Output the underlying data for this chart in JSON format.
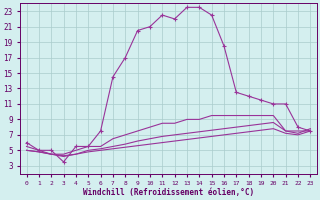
{
  "background_color": "#d4efef",
  "grid_color": "#aacccc",
  "line_color": "#993399",
  "xlabel": "Windchill (Refroidissement éolien,°C)",
  "xlabel_color": "#660066",
  "tick_color": "#660066",
  "xlim": [
    -0.5,
    23.5
  ],
  "ylim": [
    2,
    24
  ],
  "yticks": [
    3,
    5,
    7,
    9,
    11,
    13,
    15,
    17,
    19,
    21,
    23
  ],
  "xticks": [
    0,
    1,
    2,
    3,
    4,
    5,
    6,
    7,
    8,
    9,
    10,
    11,
    12,
    13,
    14,
    15,
    16,
    17,
    18,
    19,
    20,
    21,
    22,
    23
  ],
  "curve1_x": [
    0,
    1,
    2,
    3,
    4,
    5,
    6,
    7,
    8,
    9,
    10,
    11,
    12,
    13,
    14,
    15,
    16,
    17,
    18,
    19,
    20,
    21,
    22,
    23
  ],
  "curve1_y": [
    6.0,
    5.0,
    5.0,
    3.5,
    5.5,
    5.5,
    7.5,
    14.5,
    17.0,
    20.5,
    21.0,
    22.5,
    22.0,
    23.5,
    23.5,
    22.5,
    18.5,
    12.5,
    12.0,
    11.5,
    11.0,
    11.0,
    8.0,
    7.5
  ],
  "curve2_x": [
    0,
    1,
    2,
    3,
    4,
    5,
    6,
    7,
    8,
    9,
    10,
    11,
    12,
    13,
    14,
    15,
    16,
    17,
    18,
    19,
    20,
    21,
    22,
    23
  ],
  "curve2_y": [
    5.5,
    5.0,
    4.5,
    4.5,
    5.0,
    5.5,
    5.5,
    6.5,
    7.0,
    7.5,
    8.0,
    8.5,
    8.5,
    9.0,
    9.0,
    9.5,
    9.5,
    9.5,
    9.5,
    9.5,
    9.5,
    7.5,
    7.5,
    7.5
  ],
  "curve3_x": [
    0,
    1,
    2,
    3,
    4,
    5,
    6,
    7,
    8,
    9,
    10,
    11,
    12,
    13,
    14,
    15,
    16,
    17,
    18,
    19,
    20,
    21,
    22,
    23
  ],
  "curve3_y": [
    5.0,
    4.8,
    4.5,
    4.3,
    4.5,
    5.0,
    5.2,
    5.5,
    5.8,
    6.2,
    6.5,
    6.8,
    7.0,
    7.2,
    7.4,
    7.6,
    7.8,
    8.0,
    8.2,
    8.4,
    8.6,
    7.5,
    7.2,
    7.8
  ],
  "curve4_x": [
    0,
    1,
    2,
    3,
    4,
    5,
    6,
    7,
    8,
    9,
    10,
    11,
    12,
    13,
    14,
    15,
    16,
    17,
    18,
    19,
    20,
    21,
    22,
    23
  ],
  "curve4_y": [
    5.0,
    4.8,
    4.5,
    4.2,
    4.5,
    4.8,
    5.0,
    5.2,
    5.4,
    5.6,
    5.8,
    6.0,
    6.2,
    6.4,
    6.6,
    6.8,
    7.0,
    7.2,
    7.4,
    7.6,
    7.8,
    7.2,
    7.0,
    7.5
  ]
}
